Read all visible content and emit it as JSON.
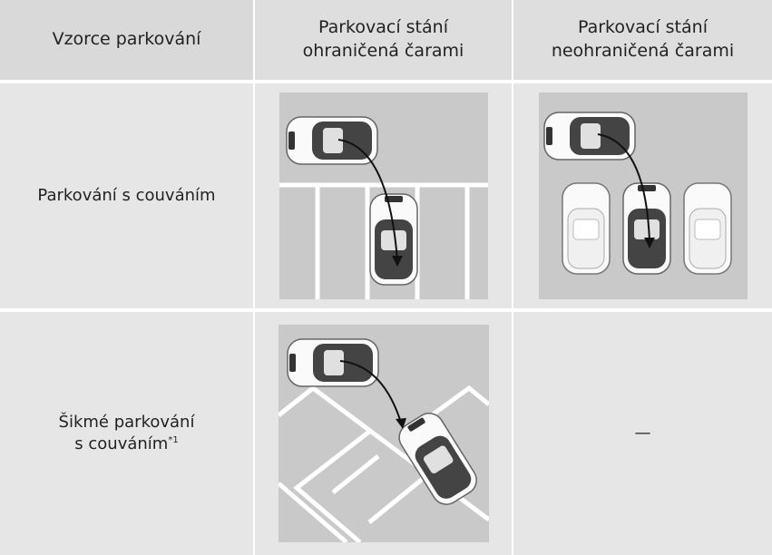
{
  "table": {
    "header": [
      "Vzorce parkování",
      "Parkovací stání ohraničená čarami",
      "Parkovací stání neohraničená čarami"
    ],
    "rows": [
      {
        "pattern": "Parkování s couváním"
      },
      {
        "pattern": [
          "Šikmé parkování",
          "s couváním"
        ],
        "note": "*1",
        "unmarked": "—"
      }
    ]
  }
}
